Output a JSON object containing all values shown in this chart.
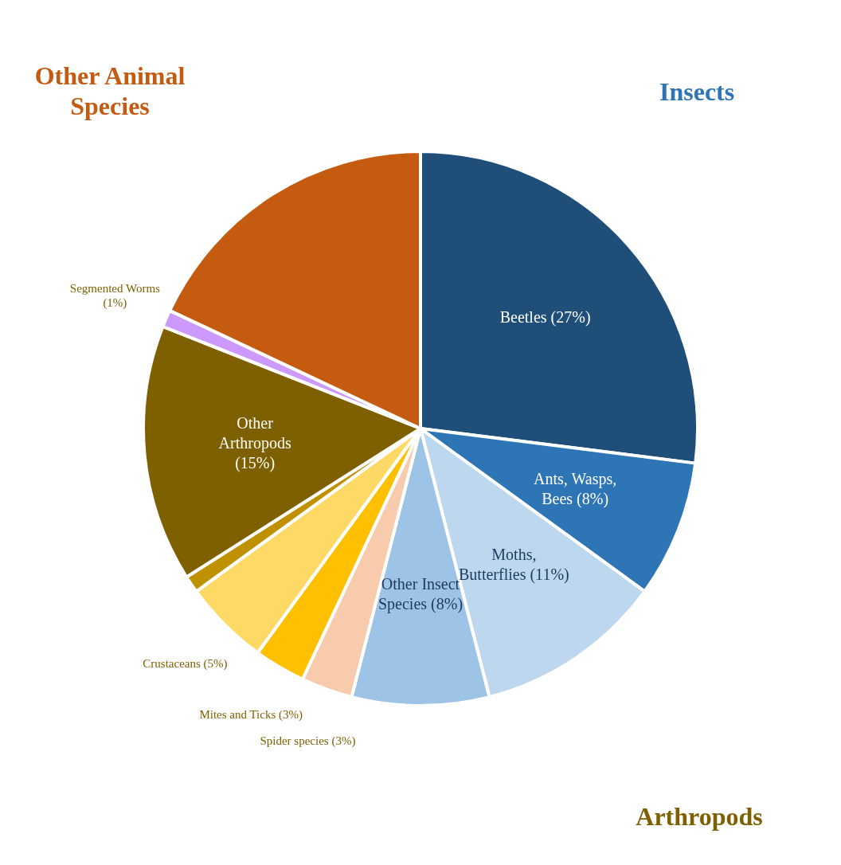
{
  "chart_data": {
    "type": "pie",
    "categories": [
      "Beetles",
      "Ants, Wasps, Bees",
      "Moths, Butterflies",
      "Other Insect Species",
      "Spider species",
      "Mites and Ticks",
      "Crustaceans",
      null,
      "Other Arthropods",
      "Segmented Worms",
      null
    ],
    "values": [
      27,
      8,
      11,
      8,
      3,
      3,
      5,
      1,
      15,
      1,
      18
    ],
    "value_labels": [
      "(27%)",
      "(8%)",
      "(11%)",
      "(8%)",
      "(3%)",
      "(3%)",
      "(5%)",
      null,
      "(15%)",
      "(1%)",
      null
    ],
    "colors": [
      "#1f4e79",
      "#2e75b6",
      "#bdd7ee",
      "#9dc3e6",
      "#f8cbad",
      "#ffc000",
      "#ffd966",
      "#bf9000",
      "#7f6000",
      "#cc99ff",
      "#c55a11"
    ],
    "annotations": [
      "Insects",
      "Other Animal Species",
      "Arthropods"
    ],
    "legend": false
  }
}
